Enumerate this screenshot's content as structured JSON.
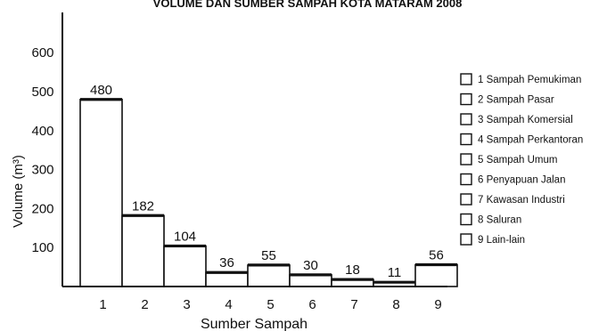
{
  "chart_data": {
    "type": "bar",
    "title": "VOLUME DAN SUMBER SAMPAH KOTA MATARAM 2008",
    "xlabel": "Sumber Sampah",
    "ylabel": "Volume (m³)",
    "categories": [
      "1",
      "2",
      "3",
      "4",
      "5",
      "6",
      "7",
      "8",
      "9"
    ],
    "values": [
      480,
      182,
      104,
      36,
      55,
      30,
      18,
      11,
      56
    ],
    "value_labels": [
      "480",
      "182",
      "104",
      "36",
      "55",
      "30",
      "18",
      "11",
      "56"
    ],
    "ylim": [
      0,
      650
    ],
    "yticks": [
      100,
      200,
      300,
      400,
      500,
      600
    ],
    "ytick_labels": [
      "100",
      "200",
      "300",
      "400",
      "500",
      "600"
    ],
    "grid": false,
    "legend_position": "right",
    "legend": [
      "1 Sampah Pemukiman",
      "2 Sampah Pasar",
      "3 Sampah Komersial",
      "4 Sampah Perkantoran",
      "5 Sampah Umum",
      "6 Penyapuan Jalan",
      "7 Kawasan Industri",
      "8 Saluran",
      "9 Lain-lain"
    ],
    "colors": {
      "ink": "#111111",
      "bar_fill": "#ffffff"
    }
  }
}
